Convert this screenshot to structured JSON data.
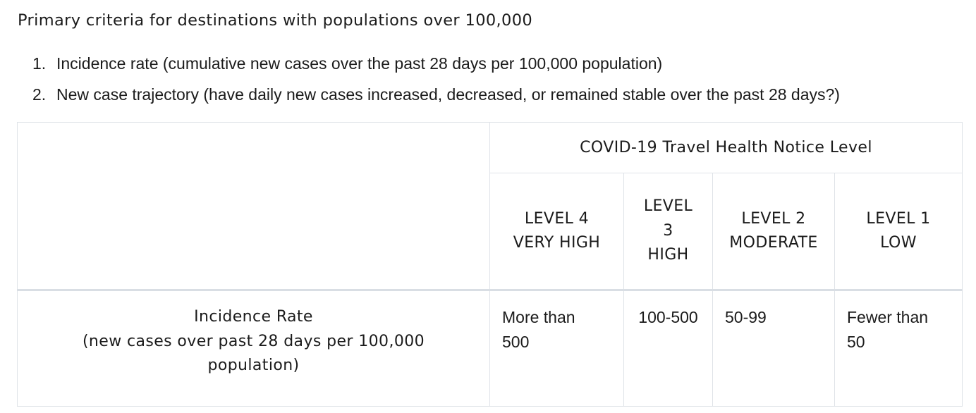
{
  "heading": "Primary criteria for destinations with populations over 100,000",
  "criteria": [
    {
      "num": "1.",
      "text": "Incidence rate (cumulative new cases over the past 28 days per 100,000 population)"
    },
    {
      "num": "2.",
      "text": "New case trajectory (have daily new cases increased, decreased, or remained stable over the past 28 days?)"
    }
  ],
  "table": {
    "group_header": "COVID-19 Travel Health Notice Level",
    "levels": [
      {
        "lines": [
          "LEVEL 4",
          "VERY HIGH"
        ]
      },
      {
        "lines": [
          "LEVEL",
          "3",
          "HIGH"
        ]
      },
      {
        "lines": [
          "LEVEL 2",
          "MODERATE"
        ]
      },
      {
        "lines": [
          "LEVEL 1",
          "LOW"
        ]
      }
    ],
    "row": {
      "label_lines": [
        "Incidence Rate",
        "(new cases over past 28 days per 100,000",
        "population)"
      ],
      "values": [
        {
          "lines": [
            "More than",
            "500"
          ]
        },
        {
          "lines": [
            "100-500"
          ]
        },
        {
          "lines": [
            "50-99"
          ]
        },
        {
          "lines": [
            "Fewer than",
            "50"
          ]
        }
      ]
    }
  }
}
